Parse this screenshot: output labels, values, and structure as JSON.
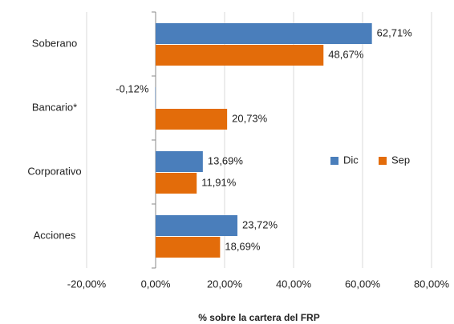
{
  "chart_data": {
    "type": "hbar",
    "xlabel": "% sobre la cartera del FRP",
    "categories": [
      "Soberano",
      "Bancario*",
      "Corporativo",
      "Acciones"
    ],
    "series": [
      {
        "name": "Dic",
        "color": "#4a7ebb",
        "values": [
          62.71,
          -0.12,
          13.69,
          23.72
        ],
        "value_labels": [
          "62,71%",
          "-0,12%",
          "13,69%",
          "23,72%"
        ]
      },
      {
        "name": "Sep",
        "color": "#e36c0a",
        "values": [
          48.67,
          20.73,
          11.91,
          18.69
        ],
        "value_labels": [
          "48,67%",
          "20,73%",
          "11,91%",
          "18,69%"
        ]
      }
    ],
    "xlim": [
      -20,
      80
    ],
    "xticks": [
      {
        "value": -20,
        "label": "-20,00%"
      },
      {
        "value": 0,
        "label": "0,00%"
      },
      {
        "value": 20,
        "label": "20,00%"
      },
      {
        "value": 40,
        "label": "40,00%"
      },
      {
        "value": 60,
        "label": "60,00%"
      },
      {
        "value": 80,
        "label": "80,00%"
      }
    ],
    "grid": true,
    "legend": "right"
  }
}
